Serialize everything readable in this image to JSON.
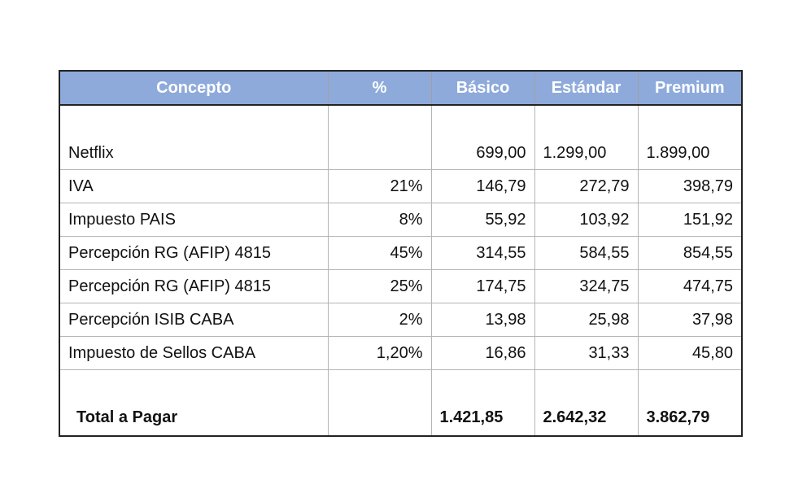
{
  "table": {
    "headers": [
      "Concepto",
      "%",
      "Básico",
      "Estándar",
      "Premium"
    ],
    "netflix": {
      "label": "Netflix",
      "pct": "",
      "basico": "699,00",
      "estandar": "1.299,00",
      "premium": "1.899,00"
    },
    "rows": [
      {
        "label": "IVA",
        "pct": "21%",
        "basico": "146,79",
        "estandar": "272,79",
        "premium": "398,79"
      },
      {
        "label": "Impuesto PAIS",
        "pct": "8%",
        "basico": "55,92",
        "estandar": "103,92",
        "premium": "151,92"
      },
      {
        "label": "Percepción RG (AFIP) 4815",
        "pct": "45%",
        "basico": "314,55",
        "estandar": "584,55",
        "premium": "854,55"
      },
      {
        "label": "Percepción RG (AFIP) 4815",
        "pct": "25%",
        "basico": "174,75",
        "estandar": "324,75",
        "premium": "474,75"
      },
      {
        "label": "Percepción ISIB CABA",
        "pct": "2%",
        "basico": "13,98",
        "estandar": "25,98",
        "premium": "37,98"
      },
      {
        "label": "Impuesto de Sellos CABA",
        "pct": "1,20%",
        "basico": "16,86",
        "estandar": "31,33",
        "premium": "45,80"
      }
    ],
    "total": {
      "label": "Total a Pagar",
      "pct": "",
      "basico": "1.421,85",
      "estandar": "2.642,32",
      "premium": "3.862,79"
    }
  },
  "colors": {
    "header_bg": "#8EAADB",
    "header_text": "#ffffff"
  }
}
